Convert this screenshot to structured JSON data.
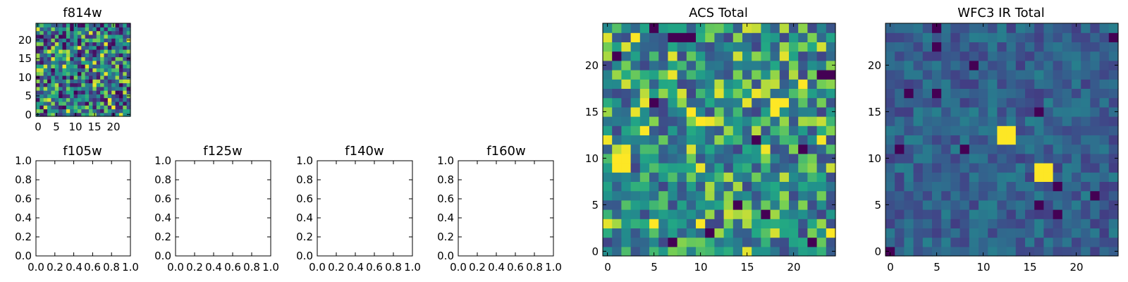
{
  "chart_data": [
    {
      "id": "f814w",
      "type": "heatmap",
      "title": "f814w",
      "grid_size": 25,
      "colormap": "viridis",
      "seed": 814,
      "xlim": [
        -0.5,
        24.5
      ],
      "ylim": [
        -0.5,
        24.5
      ],
      "xticks": [
        0,
        5,
        10,
        15,
        20
      ],
      "yticks": [
        0,
        5,
        10,
        15,
        20
      ],
      "xticklabels": [
        "0",
        "5",
        "10",
        "15",
        "20"
      ],
      "yticklabels": [
        "0",
        "5",
        "10",
        "15",
        "20"
      ]
    },
    {
      "id": "f105w",
      "type": "empty",
      "title": "f105w",
      "xlim": [
        0,
        1
      ],
      "ylim": [
        0,
        1
      ],
      "xticklabels": [
        "0.0",
        "0.2",
        "0.4",
        "0.6",
        "0.8",
        "1.0"
      ],
      "yticklabels": [
        "0.0",
        "0.2",
        "0.4",
        "0.6",
        "0.8",
        "1.0"
      ]
    },
    {
      "id": "f125w",
      "type": "empty",
      "title": "f125w",
      "xlim": [
        0,
        1
      ],
      "ylim": [
        0,
        1
      ],
      "xticklabels": [
        "0.0",
        "0.2",
        "0.4",
        "0.6",
        "0.8",
        "1.0"
      ],
      "yticklabels": [
        "0.0",
        "0.2",
        "0.4",
        "0.6",
        "0.8",
        "1.0"
      ]
    },
    {
      "id": "f140w",
      "type": "empty",
      "title": "f140w",
      "xlim": [
        0,
        1
      ],
      "ylim": [
        0,
        1
      ],
      "xticklabels": [
        "0.0",
        "0.2",
        "0.4",
        "0.6",
        "0.8",
        "1.0"
      ],
      "yticklabels": [
        "0.0",
        "0.2",
        "0.4",
        "0.6",
        "0.8",
        "1.0"
      ]
    },
    {
      "id": "f160w",
      "type": "empty",
      "title": "f160w",
      "xlim": [
        0,
        1
      ],
      "ylim": [
        0,
        1
      ],
      "xticklabels": [
        "0.0",
        "0.2",
        "0.4",
        "0.6",
        "0.8",
        "1.0"
      ],
      "yticklabels": [
        "0.0",
        "0.2",
        "0.4",
        "0.6",
        "0.8",
        "1.0"
      ]
    },
    {
      "id": "acs_total",
      "type": "heatmap",
      "title": "ACS Total",
      "grid_size": 25,
      "colormap": "viridis",
      "seed": 606,
      "value_range": [
        0.25,
        1.0
      ],
      "hot_cells": [
        [
          1,
          10
        ],
        [
          2,
          10
        ],
        [
          1,
          9
        ],
        [
          2,
          9
        ],
        [
          18,
          16
        ],
        [
          19,
          16
        ],
        [
          18,
          15
        ],
        [
          9,
          15
        ],
        [
          10,
          14
        ],
        [
          5,
          3
        ],
        [
          21,
          18
        ],
        [
          24,
          2
        ],
        [
          3,
          23
        ]
      ],
      "dark_cells": [
        [
          5,
          24
        ],
        [
          7,
          23
        ],
        [
          8,
          23
        ],
        [
          9,
          23
        ],
        [
          1,
          21
        ],
        [
          23,
          19
        ],
        [
          24,
          19
        ],
        [
          5,
          16
        ],
        [
          16,
          12
        ],
        [
          21,
          11
        ],
        [
          14,
          5
        ],
        [
          17,
          4
        ],
        [
          7,
          1
        ],
        [
          11,
          2
        ],
        [
          22,
          1
        ]
      ],
      "xlim": [
        -0.5,
        24.5
      ],
      "ylim": [
        -0.5,
        24.5
      ],
      "xticks": [
        0,
        5,
        10,
        15,
        20
      ],
      "yticks": [
        0,
        5,
        10,
        15,
        20
      ],
      "xticklabels": [
        "0",
        "5",
        "10",
        "15",
        "20"
      ],
      "yticklabels": [
        "0",
        "5",
        "10",
        "15",
        "20"
      ]
    },
    {
      "id": "wfc3_ir_total",
      "type": "heatmap",
      "title": "WFC3 IR Total",
      "grid_size": 25,
      "colormap": "viridis",
      "seed": 1205,
      "value_range": [
        0.22,
        0.55
      ],
      "hot_cells": [
        [
          12,
          13
        ],
        [
          13,
          13
        ],
        [
          12,
          12
        ],
        [
          13,
          12
        ],
        [
          16,
          9
        ],
        [
          17,
          9
        ],
        [
          16,
          8
        ],
        [
          17,
          8
        ]
      ],
      "dark_cells": [
        [
          5,
          24
        ],
        [
          24,
          23
        ],
        [
          5,
          22
        ],
        [
          9,
          20
        ],
        [
          2,
          17
        ],
        [
          5,
          17
        ],
        [
          16,
          15
        ],
        [
          1,
          11
        ],
        [
          8,
          11
        ],
        [
          18,
          7
        ],
        [
          22,
          6
        ],
        [
          16,
          5
        ],
        [
          18,
          4
        ],
        [
          0,
          0
        ]
      ],
      "xlim": [
        -0.5,
        24.5
      ],
      "ylim": [
        -0.5,
        24.5
      ],
      "xticks": [
        0,
        5,
        10,
        15,
        20
      ],
      "yticks": [
        0,
        5,
        10,
        15,
        20
      ],
      "xticklabels": [
        "0",
        "5",
        "10",
        "15",
        "20"
      ],
      "yticklabels": [
        "0",
        "5",
        "10",
        "15",
        "20"
      ]
    }
  ]
}
